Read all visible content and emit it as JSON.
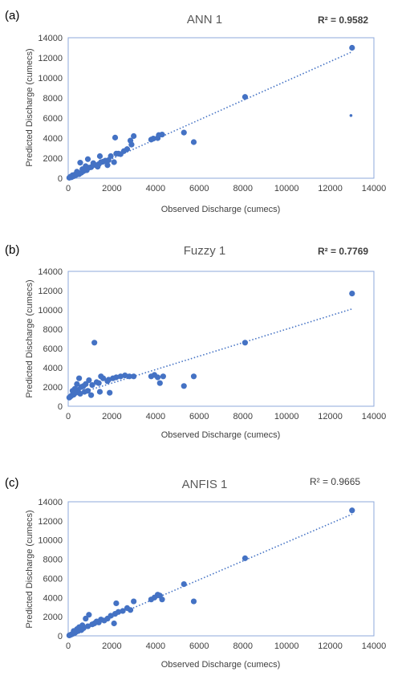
{
  "charts": [
    {
      "label": "(a)",
      "r2_text": "R² = 0.9582",
      "r2_bold": true
    },
    {
      "label": "(b)",
      "r2_text": "R² = 0.7769",
      "r2_bold": true
    },
    {
      "label": "(c)",
      "r2_text": "R² = 0.9665",
      "r2_bold": false
    }
  ],
  "colors": {
    "points": "#4472C4",
    "trendline": "#4472C4",
    "plot_border": "#8EA9DB",
    "text": "#404040"
  },
  "chart_data": [
    {
      "type": "scatter",
      "title": "ANN 1",
      "xlabel": "Observed Discharge (cumecs)",
      "ylabel": "Predicted Discharge (cumecs)",
      "xlim": [
        0,
        14000
      ],
      "ylim": [
        0,
        14000
      ],
      "xticks": [
        "0",
        "2000",
        "4000",
        "6000",
        "8000",
        "10000",
        "12000",
        "14000"
      ],
      "yticks": [
        "0",
        "2000",
        "4000",
        "6000",
        "8000",
        "10000",
        "12000",
        "14000"
      ],
      "grid": false,
      "trendline": {
        "style": "dotted",
        "from": [
          0,
          0
        ],
        "to": [
          13000,
          12600
        ]
      },
      "points": [
        [
          13000,
          13000
        ],
        [
          8100,
          8100
        ],
        [
          12950,
          6250
        ],
        [
          5300,
          4550
        ],
        [
          5750,
          3600
        ],
        [
          4300,
          4350
        ],
        [
          4150,
          4300
        ],
        [
          4100,
          4000
        ],
        [
          3900,
          3950
        ],
        [
          3800,
          3850
        ],
        [
          3000,
          4200
        ],
        [
          2850,
          3750
        ],
        [
          2900,
          3350
        ],
        [
          2700,
          2900
        ],
        [
          2550,
          2700
        ],
        [
          2400,
          2400
        ],
        [
          2300,
          2450
        ],
        [
          2200,
          2450
        ],
        [
          2150,
          4050
        ],
        [
          2100,
          1600
        ],
        [
          1950,
          2200
        ],
        [
          1850,
          1800
        ],
        [
          1800,
          1300
        ],
        [
          1700,
          1750
        ],
        [
          1600,
          1650
        ],
        [
          1500,
          1600
        ],
        [
          1450,
          2200
        ],
        [
          1400,
          1400
        ],
        [
          1350,
          1150
        ],
        [
          1250,
          1300
        ],
        [
          1150,
          1500
        ],
        [
          1050,
          1100
        ],
        [
          950,
          1050
        ],
        [
          900,
          1900
        ],
        [
          850,
          800
        ],
        [
          800,
          1200
        ],
        [
          700,
          700
        ],
        [
          650,
          900
        ],
        [
          600,
          550
        ],
        [
          550,
          1550
        ],
        [
          500,
          400
        ],
        [
          450,
          500
        ],
        [
          400,
          650
        ],
        [
          350,
          300
        ],
        [
          300,
          350
        ],
        [
          250,
          200
        ],
        [
          200,
          300
        ],
        [
          150,
          100
        ],
        [
          100,
          150
        ],
        [
          50,
          50
        ]
      ],
      "small_points": [
        [
          12950,
          6250
        ]
      ]
    },
    {
      "type": "scatter",
      "title": "Fuzzy 1",
      "xlabel": "Observed Discharge (cumecs)",
      "ylabel": "Predicted Discharge (cumecs)",
      "xlim": [
        0,
        14000
      ],
      "ylim": [
        0,
        14000
      ],
      "xticks": [
        "0",
        "2000",
        "4000",
        "6000",
        "8000",
        "10000",
        "12000",
        "14000"
      ],
      "yticks": [
        "0",
        "2000",
        "4000",
        "6000",
        "8000",
        "10000",
        "12000",
        "14000"
      ],
      "grid": false,
      "trendline": {
        "style": "dotted",
        "from": [
          0,
          1000
        ],
        "to": [
          13000,
          10100
        ]
      },
      "points": [
        [
          13000,
          11700
        ],
        [
          8100,
          6600
        ],
        [
          5750,
          3100
        ],
        [
          5300,
          2100
        ],
        [
          4350,
          3100
        ],
        [
          4200,
          2400
        ],
        [
          4100,
          3000
        ],
        [
          3950,
          3250
        ],
        [
          3800,
          3100
        ],
        [
          3000,
          3100
        ],
        [
          2800,
          3100
        ],
        [
          2600,
          3200
        ],
        [
          2400,
          3100
        ],
        [
          2200,
          3000
        ],
        [
          2050,
          2900
        ],
        [
          1900,
          1400
        ],
        [
          1850,
          2750
        ],
        [
          1800,
          2600
        ],
        [
          1600,
          2900
        ],
        [
          1500,
          3100
        ],
        [
          1450,
          1500
        ],
        [
          1400,
          2400
        ],
        [
          1300,
          2500
        ],
        [
          1200,
          6600
        ],
        [
          1100,
          2200
        ],
        [
          1050,
          1150
        ],
        [
          950,
          2700
        ],
        [
          900,
          1600
        ],
        [
          800,
          2300
        ],
        [
          750,
          1500
        ],
        [
          700,
          2100
        ],
        [
          600,
          2000
        ],
        [
          550,
          1300
        ],
        [
          500,
          2900
        ],
        [
          450,
          1700
        ],
        [
          400,
          2300
        ],
        [
          350,
          1400
        ],
        [
          300,
          1800
        ],
        [
          250,
          1200
        ],
        [
          200,
          1600
        ],
        [
          150,
          1100
        ],
        [
          100,
          1000
        ],
        [
          50,
          900
        ]
      ]
    },
    {
      "type": "scatter",
      "title": "ANFIS 1",
      "xlabel": "Observed Discharge (cumecs)",
      "ylabel": "Predicted Discharge (cumecs)",
      "xlim": [
        0,
        14000
      ],
      "ylim": [
        0,
        14000
      ],
      "xticks": [
        "0",
        "2000",
        "4000",
        "6000",
        "8000",
        "10000",
        "12000",
        "14000"
      ],
      "yticks": [
        "0",
        "2000",
        "4000",
        "6000",
        "8000",
        "10000",
        "12000",
        "14000"
      ],
      "grid": false,
      "trendline": {
        "style": "dotted",
        "from": [
          0,
          0
        ],
        "to": [
          13000,
          12700
        ]
      },
      "points": [
        [
          13000,
          13100
        ],
        [
          8100,
          8100
        ],
        [
          5750,
          3600
        ],
        [
          5300,
          5400
        ],
        [
          4300,
          3800
        ],
        [
          4200,
          4200
        ],
        [
          4100,
          4300
        ],
        [
          3950,
          4000
        ],
        [
          3800,
          3800
        ],
        [
          3000,
          3600
        ],
        [
          2850,
          2700
        ],
        [
          2700,
          2900
        ],
        [
          2500,
          2600
        ],
        [
          2300,
          2500
        ],
        [
          2200,
          3400
        ],
        [
          2150,
          2300
        ],
        [
          2100,
          1300
        ],
        [
          1950,
          2100
        ],
        [
          1800,
          1800
        ],
        [
          1650,
          1600
        ],
        [
          1500,
          1700
        ],
        [
          1400,
          1400
        ],
        [
          1300,
          1500
        ],
        [
          1200,
          1300
        ],
        [
          1100,
          1200
        ],
        [
          950,
          2200
        ],
        [
          900,
          1000
        ],
        [
          800,
          1800
        ],
        [
          700,
          800
        ],
        [
          650,
          1100
        ],
        [
          600,
          600
        ],
        [
          500,
          900
        ],
        [
          450,
          500
        ],
        [
          400,
          700
        ],
        [
          350,
          400
        ],
        [
          300,
          300
        ],
        [
          250,
          500
        ],
        [
          200,
          200
        ],
        [
          150,
          150
        ],
        [
          100,
          100
        ],
        [
          50,
          50
        ]
      ]
    }
  ]
}
